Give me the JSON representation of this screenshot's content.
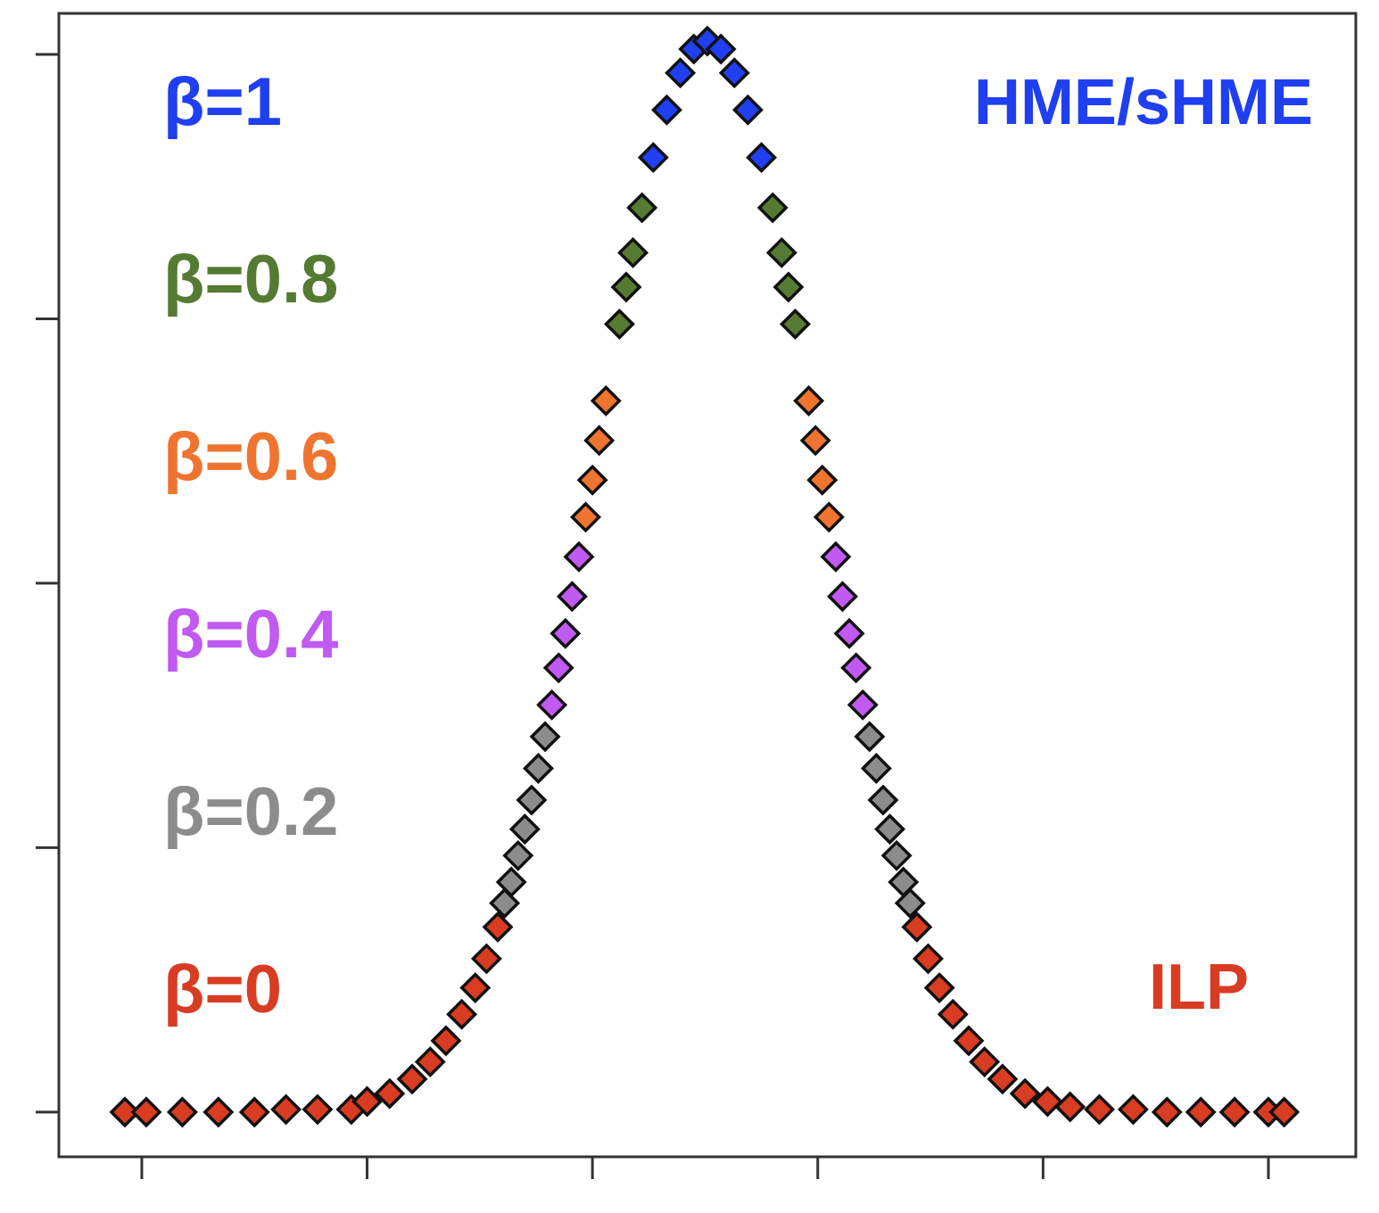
{
  "chart_data": {
    "type": "scatter",
    "xlim": [
      -0.368,
      5.388
    ],
    "ylim": [
      -0.169,
      4.155
    ],
    "xticks": [
      0,
      1,
      2,
      3,
      4,
      5
    ],
    "yticks": [
      0,
      1,
      2,
      3,
      4
    ],
    "series": [
      {
        "name": "β=1",
        "color": "#1f3ff0",
        "x": [
          2.27,
          2.33,
          2.39,
          2.45,
          2.51,
          2.57,
          2.63,
          2.69,
          2.75
        ],
        "values": [
          3.61,
          3.79,
          3.93,
          4.02,
          4.05,
          4.02,
          3.93,
          3.79,
          3.61
        ]
      },
      {
        "name": "β=0.8",
        "color": "#557a32",
        "x": [
          2.12,
          2.15,
          2.18,
          2.22,
          2.8,
          2.84,
          2.87,
          2.9
        ],
        "values": [
          2.98,
          3.12,
          3.25,
          3.42,
          3.42,
          3.25,
          3.12,
          2.98
        ]
      },
      {
        "name": "β=0.6",
        "color": "#ee7430",
        "x": [
          1.97,
          2.0,
          2.03,
          2.06,
          2.96,
          2.99,
          3.02,
          3.05
        ],
        "values": [
          2.25,
          2.39,
          2.54,
          2.69,
          2.69,
          2.54,
          2.39,
          2.25
        ]
      },
      {
        "name": "β=0.4",
        "color": "#c05af0",
        "x": [
          1.82,
          1.85,
          1.88,
          1.91,
          1.94,
          3.08,
          3.11,
          3.14,
          3.17,
          3.2
        ],
        "values": [
          1.54,
          1.68,
          1.81,
          1.95,
          2.1,
          2.1,
          1.95,
          1.81,
          1.68,
          1.54
        ]
      },
      {
        "name": "β=0.2",
        "color": "#8c8c8c",
        "x": [
          1.61,
          1.64,
          1.67,
          1.7,
          1.73,
          1.76,
          1.79,
          3.23,
          3.26,
          3.29,
          3.32,
          3.35,
          3.38,
          3.41
        ],
        "values": [
          0.79,
          0.87,
          0.97,
          1.07,
          1.18,
          1.3,
          1.42,
          1.42,
          1.3,
          1.18,
          1.07,
          0.97,
          0.87,
          0.79
        ]
      },
      {
        "name": "β=0",
        "color": "#d83c22",
        "x": [
          -0.075,
          0.02,
          0.18,
          0.34,
          0.5,
          0.64,
          0.78,
          0.93,
          1.0,
          1.1,
          1.2,
          1.28,
          1.35,
          1.42,
          1.48,
          1.53,
          1.58,
          3.44,
          3.49,
          3.54,
          3.6,
          3.67,
          3.74,
          3.82,
          3.92,
          4.02,
          4.12,
          4.25,
          4.4,
          4.55,
          4.7,
          4.85,
          5.0,
          5.07
        ],
        "values": [
          0,
          0,
          0,
          0,
          0,
          0.01,
          0.01,
          0.01,
          0.04,
          0.07,
          0.125,
          0.19,
          0.27,
          0.37,
          0.47,
          0.58,
          0.7,
          0.7,
          0.58,
          0.47,
          0.37,
          0.27,
          0.19,
          0.125,
          0.07,
          0.04,
          0.02,
          0.01,
          0.01,
          0,
          0,
          0,
          0,
          0
        ]
      }
    ],
    "annotations": [
      {
        "text": "HME/sHME",
        "color": "#1f3ff0"
      },
      {
        "text": "ILP",
        "color": "#d83c22"
      }
    ]
  }
}
